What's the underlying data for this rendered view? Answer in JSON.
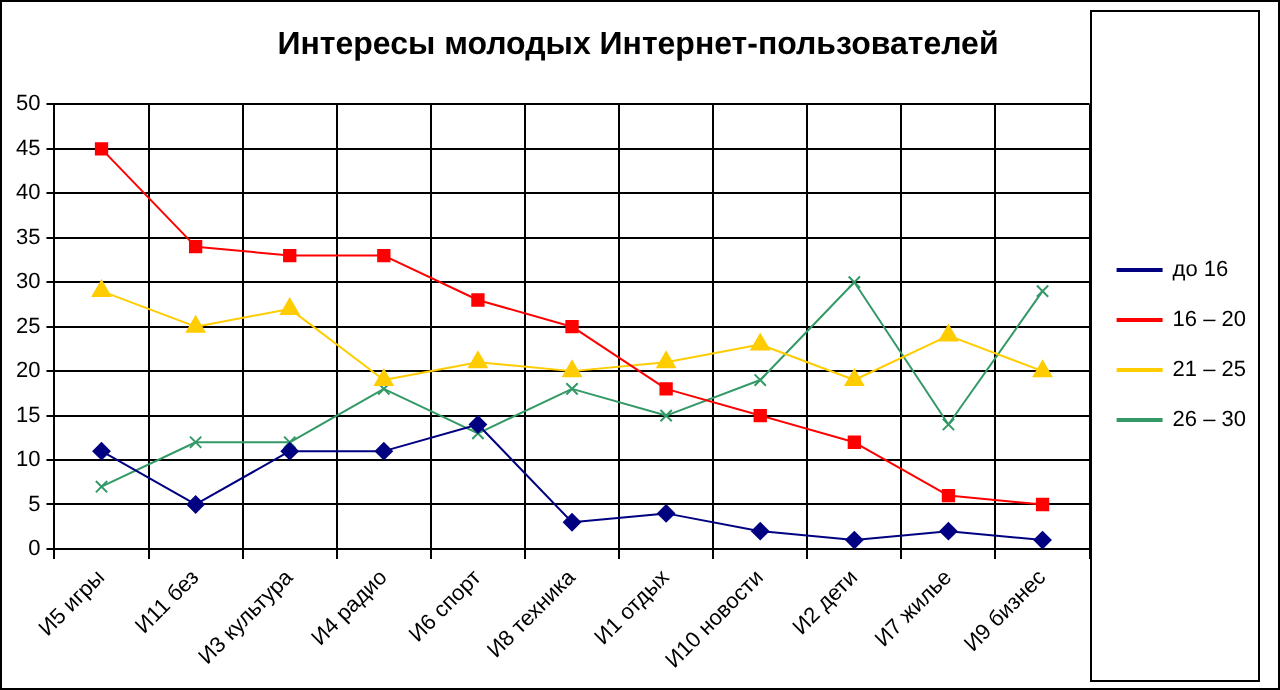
{
  "chart_data": {
    "type": "line",
    "title": "Интересы молодых Интернет-пользователей",
    "categories": [
      "И5 игры",
      "И11 без",
      "И3 культура",
      "И4 радио",
      "И6 спорт",
      "И8 техника",
      "И1 отдых",
      "И10 новости",
      "И2 дети",
      "И7 жилье",
      "И9 бизнес"
    ],
    "series": [
      {
        "name": "до 16",
        "color": "#000080",
        "marker": "diamond",
        "values": [
          11,
          5,
          11,
          11,
          14,
          3,
          4,
          2,
          1,
          2,
          1
        ]
      },
      {
        "name": "16 – 20",
        "color": "#ff0000",
        "marker": "square",
        "values": [
          45,
          34,
          33,
          33,
          28,
          25,
          18,
          15,
          12,
          6,
          5
        ]
      },
      {
        "name": "21 – 25",
        "color": "#ffcc00",
        "marker": "triangle",
        "values": [
          29,
          25,
          27,
          19,
          21,
          20,
          21,
          23,
          19,
          24,
          20
        ]
      },
      {
        "name": "26 – 30",
        "color": "#339966",
        "marker": "cross",
        "values": [
          7,
          12,
          12,
          18,
          13,
          18,
          15,
          19,
          30,
          14,
          29
        ]
      }
    ],
    "ylim": [
      0,
      50
    ],
    "yticks": [
      0,
      5,
      10,
      15,
      20,
      25,
      30,
      35,
      40,
      45,
      50
    ],
    "grid": true,
    "legend": "right"
  }
}
